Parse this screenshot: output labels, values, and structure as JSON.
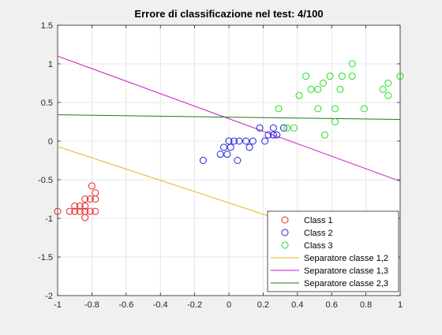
{
  "chart_data": {
    "type": "scatter",
    "title": "Errore di classificazione nel test: 4/100",
    "xlim": [
      -1,
      1
    ],
    "ylim": [
      -2,
      1.5
    ],
    "xticks": [
      -1,
      -0.8,
      -0.6,
      -0.4,
      -0.2,
      0,
      0.2,
      0.4,
      0.6,
      0.8,
      1
    ],
    "xtick_labels": [
      "-1",
      "-0.8",
      "-0.6",
      "-0.4",
      "-0.2",
      "0",
      "0.2",
      "0.4",
      "0.6",
      "0.8",
      "1"
    ],
    "yticks": [
      -2,
      -1.5,
      -1,
      -0.5,
      0,
      0.5,
      1,
      1.5
    ],
    "ytick_labels": [
      "-2",
      "-1.5",
      "-1",
      "-0.5",
      "0",
      "0.5",
      "1",
      "1.5"
    ],
    "grid": true,
    "legend_position": "bottom-right",
    "series": [
      {
        "name": "Class 1",
        "kind": "scatter",
        "marker": "circle",
        "color": "#e8262a",
        "points": [
          [
            -1.0,
            -0.91
          ],
          [
            -0.93,
            -0.91
          ],
          [
            -0.9,
            -0.84
          ],
          [
            -0.9,
            -0.91
          ],
          [
            -0.87,
            -0.91
          ],
          [
            -0.87,
            -0.84
          ],
          [
            -0.84,
            -0.84
          ],
          [
            -0.84,
            -0.75
          ],
          [
            -0.84,
            -0.91
          ],
          [
            -0.84,
            -0.99
          ],
          [
            -0.81,
            -0.75
          ],
          [
            -0.81,
            -0.91
          ],
          [
            -0.8,
            -0.58
          ],
          [
            -0.78,
            -0.75
          ],
          [
            -0.78,
            -0.67
          ],
          [
            -0.78,
            -0.91
          ]
        ]
      },
      {
        "name": "Class 2",
        "kind": "scatter",
        "marker": "circle",
        "color": "#1f1fdc",
        "points": [
          [
            -0.15,
            -0.25
          ],
          [
            -0.05,
            -0.17
          ],
          [
            -0.03,
            -0.08
          ],
          [
            -0.01,
            -0.17
          ],
          [
            0.0,
            0.0
          ],
          [
            0.01,
            -0.08
          ],
          [
            0.03,
            0.0
          ],
          [
            0.05,
            -0.25
          ],
          [
            0.06,
            0.0
          ],
          [
            0.1,
            0.0
          ],
          [
            0.12,
            -0.08
          ],
          [
            0.14,
            0.0
          ],
          [
            0.18,
            0.17
          ],
          [
            0.21,
            0.0
          ],
          [
            0.23,
            0.08
          ],
          [
            0.26,
            0.17
          ],
          [
            0.26,
            0.08
          ],
          [
            0.28,
            0.08
          ],
          [
            0.32,
            0.17
          ]
        ]
      },
      {
        "name": "Class 3",
        "kind": "scatter",
        "marker": "circle",
        "color": "#22e022",
        "points": [
          [
            0.29,
            0.42
          ],
          [
            0.34,
            0.17
          ],
          [
            0.38,
            0.17
          ],
          [
            0.41,
            0.59
          ],
          [
            0.45,
            0.84
          ],
          [
            0.48,
            0.67
          ],
          [
            0.52,
            0.67
          ],
          [
            0.52,
            0.42
          ],
          [
            0.55,
            0.75
          ],
          [
            0.56,
            0.08
          ],
          [
            0.59,
            0.84
          ],
          [
            0.62,
            0.42
          ],
          [
            0.62,
            0.25
          ],
          [
            0.65,
            0.67
          ],
          [
            0.66,
            0.84
          ],
          [
            0.72,
            0.84
          ],
          [
            0.72,
            1.0
          ],
          [
            0.79,
            0.42
          ],
          [
            0.9,
            0.67
          ],
          [
            0.93,
            0.75
          ],
          [
            0.93,
            0.59
          ],
          [
            1.0,
            0.84
          ]
        ]
      },
      {
        "name": "Separatore classe 1,2",
        "kind": "line",
        "color": "#edb120",
        "points": [
          [
            -1,
            -0.07
          ],
          [
            1,
            -1.53
          ]
        ]
      },
      {
        "name": "Separatore classe 1,3",
        "kind": "line",
        "color": "#c31ac3",
        "points": [
          [
            -1,
            1.1
          ],
          [
            1,
            -0.52
          ]
        ]
      },
      {
        "name": "Separatore classe 2,3",
        "kind": "line",
        "color": "#1a7a1a",
        "points": [
          [
            -1,
            0.34
          ],
          [
            1,
            0.28
          ]
        ]
      }
    ]
  }
}
